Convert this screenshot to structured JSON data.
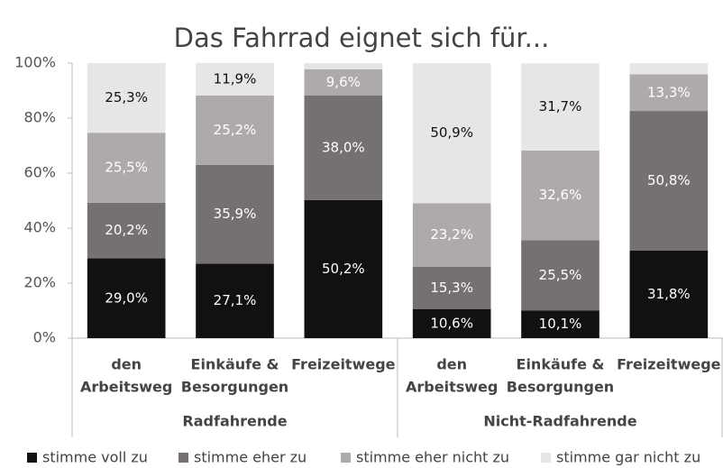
{
  "chart_data": {
    "type": "stacked_bar",
    "title": "Das Fahrrad eignet sich für...",
    "categories": [
      [
        "den",
        "Arbeitsweg"
      ],
      [
        "Einkäufe &",
        "Besorgungen"
      ],
      [
        "Freizeitwege"
      ],
      [
        "den",
        "Arbeitsweg"
      ],
      [
        "Einkäufe &",
        "Besorgungen"
      ],
      [
        "Freizeitwege"
      ]
    ],
    "groups": [
      "Radfahrende",
      "Nicht-Radfahrende"
    ],
    "series": [
      {
        "name": "stimme voll zu",
        "color": "#111111",
        "label_color": "#ffffff",
        "values": [
          29.0,
          27.1,
          50.2,
          10.6,
          10.1,
          31.8
        ],
        "value_labels": [
          "29,0%",
          "27,1%",
          "50,2%",
          "10,6%",
          "10,1%",
          "31,8%"
        ]
      },
      {
        "name": "stimme eher zu",
        "color": "#767171",
        "label_color": "#ffffff",
        "values": [
          20.2,
          35.9,
          38.0,
          15.3,
          25.5,
          50.8
        ],
        "value_labels": [
          "20,2%",
          "35,9%",
          "38,0%",
          "15,3%",
          "25,5%",
          "50,8%"
        ]
      },
      {
        "name": "stimme eher nicht zu",
        "color": "#aeaaaa",
        "label_color": "#ffffff",
        "values": [
          25.5,
          25.2,
          9.6,
          23.2,
          32.6,
          13.3
        ],
        "value_labels": [
          "25,5%",
          "25,2%",
          "9,6%",
          "23,2%",
          "32,6%",
          "13,3%"
        ]
      },
      {
        "name": "stimme gar nicht zu",
        "color": "#e7e6e6",
        "label_color": "#111111",
        "values": [
          25.3,
          11.9,
          2.2,
          50.9,
          31.7,
          4.1
        ],
        "value_labels": [
          "25,3%",
          "11,9%",
          null,
          "50,9%",
          "31,7%",
          null
        ]
      }
    ],
    "ylim": [
      0,
      100
    ],
    "yticks": [
      {
        "value": 0,
        "label": "0%"
      },
      {
        "value": 20,
        "label": "20%"
      },
      {
        "value": 40,
        "label": "40%"
      },
      {
        "value": 60,
        "label": "60%"
      },
      {
        "value": 80,
        "label": "80%"
      },
      {
        "value": 100,
        "label": "100%"
      }
    ],
    "legend": "bottom"
  }
}
